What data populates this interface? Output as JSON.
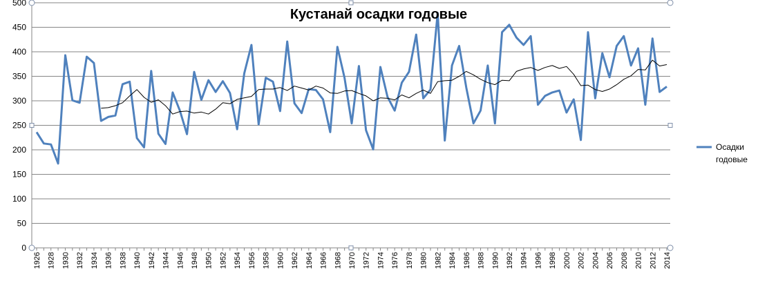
{
  "chart_data": {
    "type": "line",
    "title": "Кустанай осадки годовые",
    "xlabel": "",
    "ylabel": "",
    "ylim": [
      0,
      500
    ],
    "y_ticks": [
      0,
      50,
      100,
      150,
      200,
      250,
      300,
      350,
      400,
      450,
      500
    ],
    "x_tick_labels": [
      "1926",
      "1928",
      "1930",
      "1932",
      "1934",
      "1936",
      "1938",
      "1940",
      "1942",
      "1944",
      "1946",
      "1948",
      "1950",
      "1952",
      "1954",
      "1956",
      "1958",
      "1960",
      "1962",
      "1964",
      "1966",
      "1968",
      "1970",
      "1972",
      "1974",
      "1976",
      "1978",
      "1980",
      "1982",
      "1984",
      "1986",
      "1988",
      "1990",
      "1992",
      "1994",
      "1996",
      "1998",
      "2000",
      "2002",
      "2004",
      "2006",
      "2008",
      "2010",
      "2012",
      "2014"
    ],
    "grid": "horizontal",
    "legend_position": "right",
    "x": [
      1926,
      1927,
      1928,
      1929,
      1930,
      1931,
      1932,
      1933,
      1934,
      1935,
      1936,
      1937,
      1938,
      1939,
      1940,
      1941,
      1942,
      1943,
      1944,
      1945,
      1946,
      1947,
      1948,
      1949,
      1950,
      1951,
      1952,
      1953,
      1954,
      1955,
      1956,
      1957,
      1958,
      1959,
      1960,
      1961,
      1962,
      1963,
      1964,
      1965,
      1966,
      1967,
      1968,
      1969,
      1970,
      1971,
      1972,
      1973,
      1974,
      1975,
      1976,
      1977,
      1978,
      1979,
      1980,
      1981,
      1982,
      1983,
      1984,
      1985,
      1986,
      1987,
      1988,
      1989,
      1990,
      1991,
      1992,
      1993,
      1994,
      1995,
      1996,
      1997,
      1998,
      1999,
      2000,
      2001,
      2002,
      2003,
      2004,
      2005,
      2006,
      2007,
      2008,
      2009,
      2010,
      2011,
      2012,
      2013,
      2014
    ],
    "series": [
      {
        "name": "Осадки годовые",
        "color": "#4f81bd",
        "values": [
          236,
          213,
          211,
          172,
          393,
          301,
          296,
          390,
          377,
          259,
          267,
          270,
          334,
          339,
          224,
          205,
          361,
          233,
          212,
          317,
          280,
          232,
          359,
          302,
          342,
          318,
          340,
          316,
          242,
          356,
          414,
          252,
          347,
          339,
          279,
          421,
          295,
          275,
          324,
          322,
          303,
          236,
          410,
          347,
          254,
          371,
          240,
          201,
          369,
          308,
          280,
          337,
          359,
          435,
          305,
          323,
          479,
          219,
          372,
          412,
          327,
          254,
          280,
          372,
          254,
          440,
          455,
          429,
          414,
          432,
          292,
          310,
          317,
          321,
          276,
          303,
          220,
          440,
          305,
          397,
          348,
          412,
          432,
          372,
          407,
          292,
          427,
          318,
          329
        ]
      },
      {
        "name": "",
        "color": "#000000",
        "values": [
          null,
          null,
          null,
          null,
          null,
          null,
          null,
          null,
          null,
          285,
          286,
          290,
          296,
          310,
          323,
          307,
          297,
          302,
          290,
          273,
          278,
          279,
          275,
          277,
          273,
          283,
          296,
          294,
          303,
          306,
          309,
          323,
          324,
          324,
          327,
          321,
          330,
          326,
          322,
          330,
          326,
          316,
          315,
          320,
          321,
          315,
          310,
          300,
          306,
          305,
          302,
          312,
          306,
          315,
          322,
          315,
          339,
          341,
          342,
          350,
          360,
          353,
          344,
          337,
          333,
          342,
          341,
          360,
          365,
          368,
          362,
          368,
          372,
          366,
          370,
          354,
          331,
          332,
          323,
          319,
          324,
          333,
          344,
          351,
          364,
          363,
          383,
          371,
          374
        ]
      }
    ]
  }
}
